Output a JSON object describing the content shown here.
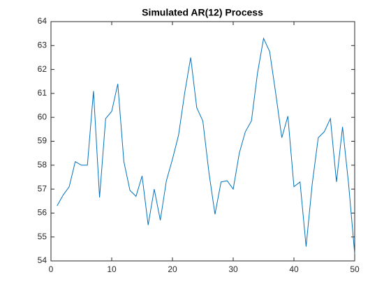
{
  "chart_data": {
    "type": "line",
    "title": "Simulated AR(12) Process",
    "x": [
      1,
      2,
      3,
      4,
      5,
      6,
      7,
      8,
      9,
      10,
      11,
      12,
      13,
      14,
      15,
      16,
      17,
      18,
      19,
      20,
      21,
      22,
      23,
      24,
      25,
      26,
      27,
      28,
      29,
      30,
      31,
      32,
      33,
      34,
      35,
      36,
      37,
      38,
      39,
      40,
      41,
      42,
      43,
      44,
      45,
      46,
      47,
      48,
      49,
      50
    ],
    "series": [
      {
        "color": "#0072bd",
        "values": [
          56.3,
          56.75,
          57.1,
          58.15,
          58.0,
          58.0,
          61.1,
          56.65,
          59.95,
          60.25,
          61.4,
          58.15,
          56.95,
          56.7,
          57.55,
          55.5,
          57.0,
          55.7,
          57.35,
          58.25,
          59.25,
          61.0,
          62.5,
          60.4,
          59.85,
          57.7,
          55.95,
          57.3,
          57.35,
          57.0,
          58.5,
          59.4,
          59.85,
          61.85,
          63.3,
          62.75,
          61.0,
          59.15,
          60.05,
          57.1,
          57.3,
          54.6,
          57.2,
          59.15,
          59.4,
          59.95,
          57.3,
          59.6,
          57.2,
          54.3
        ]
      }
    ],
    "xlim": [
      0,
      50
    ],
    "xticks": [
      0,
      10,
      20,
      30,
      40,
      50
    ],
    "ylim": [
      54,
      64
    ],
    "yticks": [
      54,
      55,
      56,
      57,
      58,
      59,
      60,
      61,
      62,
      63,
      64
    ]
  }
}
